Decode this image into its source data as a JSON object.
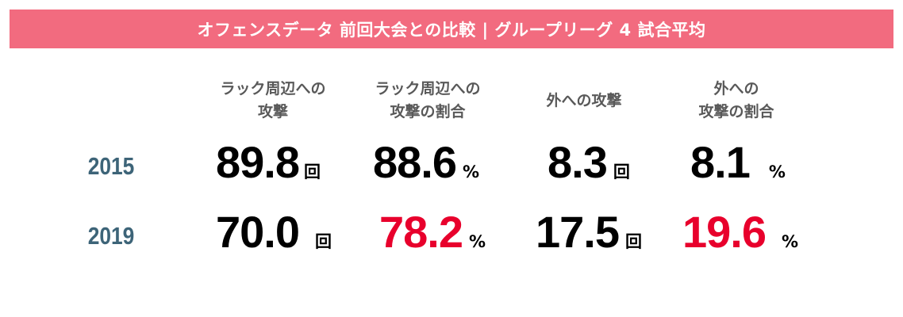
{
  "banner": {
    "title": "オフェンスデータ 前回大会との比較 | グループリーグ 4 試合平均",
    "color": "#f26b7f"
  },
  "columns": [
    {
      "label": "ラック周辺への\n攻撃"
    },
    {
      "label": "ラック周辺への\n攻撃の割合"
    },
    {
      "label": "外への攻撃"
    },
    {
      "label": "外への\n攻撃の割合"
    }
  ],
  "rows": [
    {
      "year": "2015",
      "cells": [
        {
          "value": "89.8",
          "unit": "回"
        },
        {
          "value": "88.6",
          "unit": "%"
        },
        {
          "value": "8.3",
          "unit": "回"
        },
        {
          "value": "8.1",
          "unit": "%"
        }
      ]
    },
    {
      "year": "2019",
      "cells": [
        {
          "value": "70.0",
          "unit": "回"
        },
        {
          "value": "78.2",
          "unit": "%",
          "highlight": true
        },
        {
          "value": "17.5",
          "unit": "回"
        },
        {
          "value": "19.6",
          "unit": "%",
          "highlight": true
        }
      ]
    }
  ],
  "colors": {
    "year": "#3d6478",
    "value": "#000000",
    "highlight": "#e8002c",
    "header_text": "#595959"
  }
}
